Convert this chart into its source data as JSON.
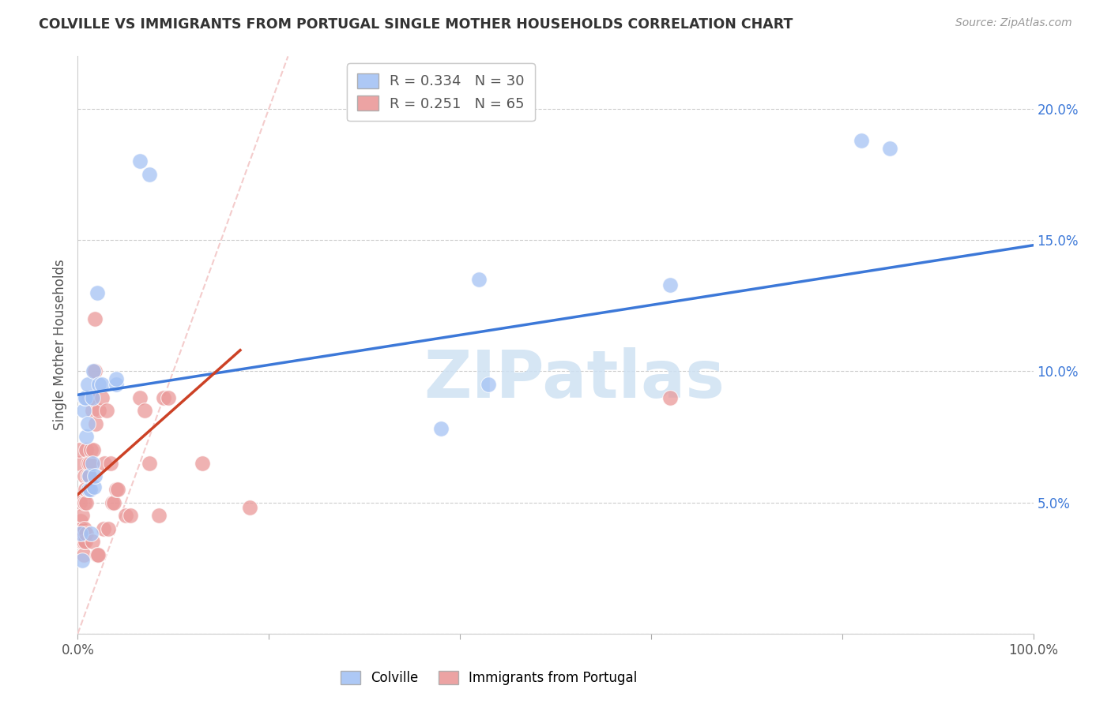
{
  "title": "COLVILLE VS IMMIGRANTS FROM PORTUGAL SINGLE MOTHER HOUSEHOLDS CORRELATION CHART",
  "source": "Source: ZipAtlas.com",
  "ylabel": "Single Mother Households",
  "xlabel": "",
  "xlim": [
    0,
    1.0
  ],
  "ylim": [
    0,
    0.22
  ],
  "xtick_vals": [
    0.0,
    0.2,
    0.4,
    0.6,
    0.8,
    1.0
  ],
  "xticklabels": [
    "0.0%",
    "",
    "",
    "",
    "",
    "100.0%"
  ],
  "ytick_vals": [
    0.0,
    0.05,
    0.1,
    0.15,
    0.2
  ],
  "yticklabels": [
    "",
    "5.0%",
    "10.0%",
    "15.0%",
    "20.0%"
  ],
  "legend_colville": "Colville",
  "legend_portugal": "Immigrants from Portugal",
  "r_colville": 0.334,
  "n_colville": 30,
  "r_portugal": 0.251,
  "n_portugal": 65,
  "colville_color": "#a4c2f4",
  "portugal_color": "#ea9999",
  "colville_line_color": "#3c78d8",
  "portugal_line_color": "#cc4125",
  "diagonal_color": "#f4cccc",
  "watermark_color": "#cfe2f3",
  "watermark": "ZIPatlas",
  "colville_x": [
    0.003,
    0.006,
    0.007,
    0.008,
    0.009,
    0.01,
    0.011,
    0.012,
    0.013,
    0.014,
    0.015,
    0.016,
    0.017,
    0.018,
    0.02,
    0.022,
    0.025,
    0.04,
    0.04,
    0.065,
    0.075,
    0.38,
    0.42,
    0.43,
    0.62,
    0.82,
    0.85,
    0.005,
    0.01,
    0.015
  ],
  "colville_y": [
    0.038,
    0.085,
    0.09,
    0.09,
    0.075,
    0.095,
    0.055,
    0.06,
    0.055,
    0.038,
    0.065,
    0.1,
    0.056,
    0.06,
    0.13,
    0.095,
    0.095,
    0.095,
    0.097,
    0.18,
    0.175,
    0.078,
    0.135,
    0.095,
    0.133,
    0.188,
    0.185,
    0.028,
    0.08,
    0.09
  ],
  "portugal_x": [
    0.001,
    0.001,
    0.002,
    0.002,
    0.003,
    0.003,
    0.003,
    0.004,
    0.004,
    0.004,
    0.005,
    0.005,
    0.005,
    0.006,
    0.006,
    0.007,
    0.007,
    0.007,
    0.008,
    0.008,
    0.009,
    0.009,
    0.009,
    0.01,
    0.01,
    0.011,
    0.011,
    0.012,
    0.012,
    0.013,
    0.013,
    0.014,
    0.014,
    0.015,
    0.015,
    0.016,
    0.016,
    0.017,
    0.018,
    0.018,
    0.019,
    0.02,
    0.021,
    0.022,
    0.025,
    0.027,
    0.028,
    0.03,
    0.032,
    0.034,
    0.036,
    0.038,
    0.04,
    0.042,
    0.05,
    0.055,
    0.065,
    0.07,
    0.075,
    0.085,
    0.09,
    0.095,
    0.13,
    0.18,
    0.62
  ],
  "portugal_y": [
    0.065,
    0.07,
    0.04,
    0.05,
    0.035,
    0.04,
    0.043,
    0.035,
    0.038,
    0.04,
    0.035,
    0.038,
    0.045,
    0.03,
    0.035,
    0.04,
    0.05,
    0.06,
    0.035,
    0.055,
    0.038,
    0.05,
    0.07,
    0.06,
    0.09,
    0.055,
    0.065,
    0.06,
    0.09,
    0.055,
    0.065,
    0.07,
    0.09,
    0.035,
    0.085,
    0.07,
    0.09,
    0.1,
    0.1,
    0.12,
    0.08,
    0.03,
    0.03,
    0.085,
    0.09,
    0.04,
    0.065,
    0.085,
    0.04,
    0.065,
    0.05,
    0.05,
    0.055,
    0.055,
    0.045,
    0.045,
    0.09,
    0.085,
    0.065,
    0.045,
    0.09,
    0.09,
    0.065,
    0.048,
    0.09
  ],
  "blue_line": {
    "x0": 0.0,
    "x1": 1.0,
    "y0": 0.091,
    "y1": 0.148
  },
  "pink_line": {
    "x0": 0.0,
    "x1": 0.17,
    "y0": 0.053,
    "y1": 0.108
  },
  "diag_line": {
    "x0": 0.0,
    "x1": 0.22,
    "y0": 0.0,
    "y1": 0.22
  }
}
